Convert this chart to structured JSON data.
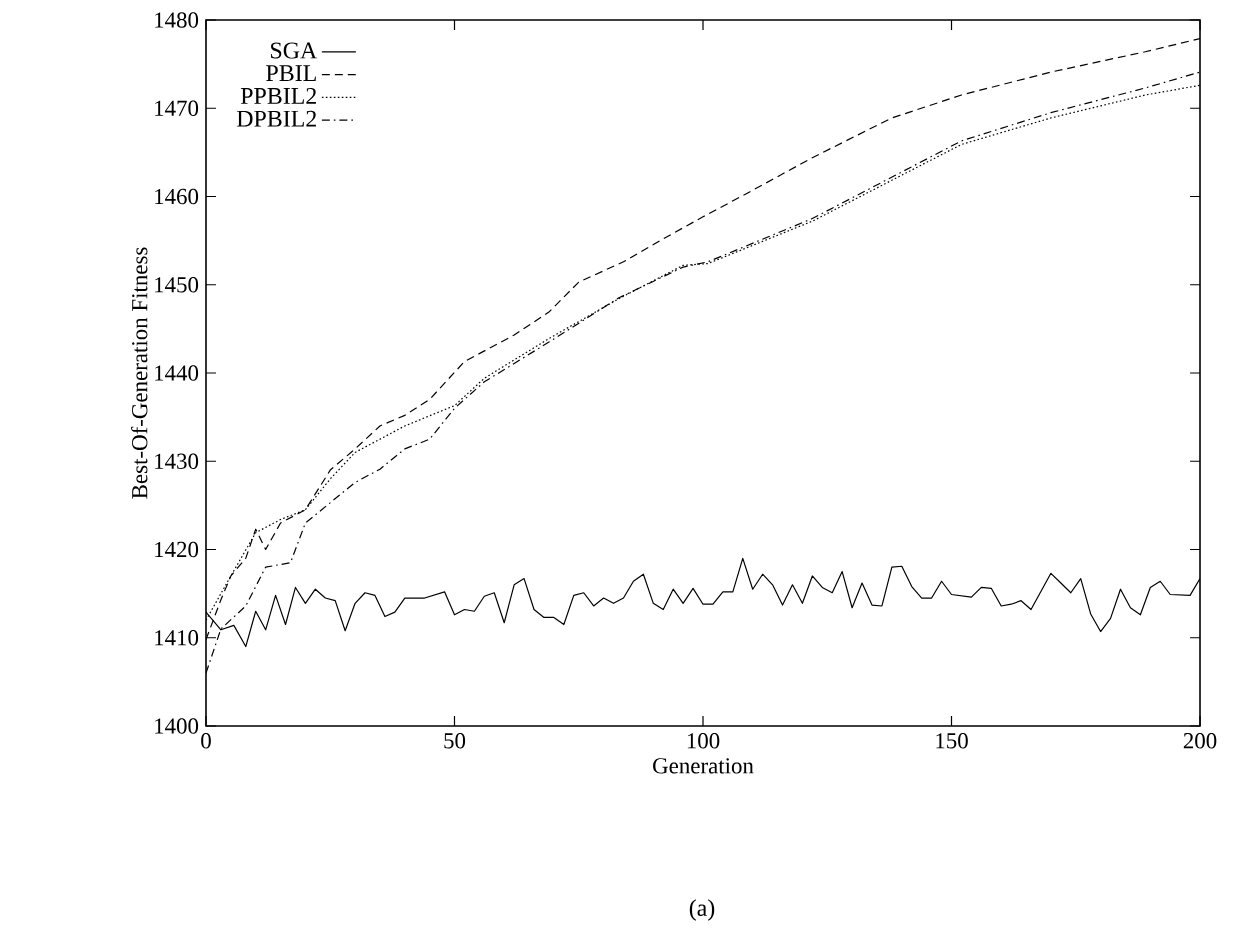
{
  "chart_data": {
    "type": "line",
    "xlabel": "Generation",
    "ylabel": "Best-Of-Generation Fitness",
    "xlim": [
      0,
      200
    ],
    "ylim": [
      1400,
      1480
    ],
    "xticks": [
      0,
      50,
      100,
      150,
      200
    ],
    "yticks": [
      1400,
      1410,
      1420,
      1430,
      1440,
      1450,
      1460,
      1470,
      1480
    ],
    "grid": false,
    "legend": "top left",
    "marker": "none",
    "annotations": [
      "(a)"
    ],
    "series": [
      {
        "name": "SGA",
        "color": "#000000",
        "line_style": "solid",
        "x": [
          0,
          3,
          5.6,
          8,
          10,
          12,
          14,
          16,
          18,
          20,
          22,
          24,
          26,
          28,
          30,
          32,
          34,
          36,
          38,
          40,
          44,
          48,
          50,
          52,
          54,
          56,
          58,
          60,
          62,
          64,
          66,
          68,
          70,
          72,
          74,
          76,
          78,
          80,
          82,
          84,
          86,
          88,
          90,
          92,
          94,
          96,
          98,
          100,
          102,
          104,
          106,
          108,
          110,
          112,
          114,
          116,
          118,
          120,
          122,
          124,
          126,
          128,
          130,
          132,
          134,
          136,
          138,
          140,
          142,
          144,
          146,
          148,
          150,
          154,
          156,
          158,
          160,
          162,
          164,
          166,
          170,
          172,
          174,
          176,
          178,
          180,
          182,
          184,
          186,
          188,
          190,
          192,
          194,
          198,
          200
        ],
        "values": [
          1412.9,
          1410.9,
          1411.4,
          1409.0,
          1413.0,
          1410.9,
          1414.8,
          1411.5,
          1415.7,
          1413.9,
          1415.5,
          1414.5,
          1414.2,
          1410.8,
          1413.9,
          1415.1,
          1414.8,
          1412.4,
          1412.9,
          1414.5,
          1414.5,
          1415.2,
          1412.6,
          1413.2,
          1413.0,
          1414.7,
          1415.1,
          1411.7,
          1416.0,
          1416.7,
          1413.2,
          1412.3,
          1412.3,
          1411.5,
          1414.8,
          1415.1,
          1413.6,
          1414.5,
          1413.9,
          1414.5,
          1416.4,
          1417.2,
          1413.9,
          1413.2,
          1415.5,
          1413.9,
          1415.6,
          1413.8,
          1413.8,
          1415.2,
          1415.2,
          1419.0,
          1415.5,
          1417.2,
          1416.0,
          1413.7,
          1416.0,
          1413.9,
          1417.0,
          1415.7,
          1415.1,
          1417.5,
          1413.4,
          1416.2,
          1413.7,
          1413.6,
          1418.0,
          1418.1,
          1415.8,
          1414.5,
          1414.5,
          1416.4,
          1414.9,
          1414.6,
          1415.7,
          1415.6,
          1413.6,
          1413.8,
          1414.2,
          1413.2,
          1417.3,
          1416.2,
          1415.1,
          1416.7,
          1412.7,
          1410.7,
          1412.2,
          1415.5,
          1413.4,
          1412.6,
          1415.7,
          1416.4,
          1414.9,
          1414.8,
          1416.7
        ]
      },
      {
        "name": "PBIL",
        "color": "#000000",
        "line_style": "dashed",
        "x": [
          0,
          3,
          5,
          8,
          10,
          12,
          15,
          20,
          25,
          30,
          35,
          40,
          45,
          52,
          62,
          69,
          75,
          84,
          92,
          100,
          109,
          122,
          138,
          152,
          170,
          189,
          200
        ],
        "values": [
          1409.8,
          1414.3,
          1417,
          1419,
          1422.3,
          1420,
          1423,
          1424.5,
          1429,
          1431.4,
          1434,
          1435.2,
          1437,
          1441.3,
          1444.3,
          1446.9,
          1450.3,
          1452.6,
          1455.2,
          1457.7,
          1460.4,
          1464.4,
          1468.9,
          1471.5,
          1474.1,
          1476.4,
          1477.9
        ]
      },
      {
        "name": "PPBIL2",
        "color": "#000000",
        "line_style": "dotted",
        "x": [
          0,
          5,
          10,
          15,
          20,
          25,
          30,
          35,
          40,
          50,
          56,
          69,
          83,
          96,
          101,
          122,
          152,
          170,
          189,
          200
        ],
        "values": [
          1412,
          1417,
          1421.9,
          1423.4,
          1424.5,
          1428,
          1431,
          1432.5,
          1434,
          1436.3,
          1439.4,
          1443.9,
          1448.4,
          1452.2,
          1452.4,
          1457.2,
          1465.9,
          1468.9,
          1471.5,
          1472.6
        ]
      },
      {
        "name": "DPBIL2",
        "color": "#000000",
        "line_style": "dashdot",
        "x": [
          0,
          3,
          8,
          12,
          17,
          20,
          25,
          30,
          35,
          40,
          45,
          50,
          56,
          69,
          83,
          96,
          101,
          122,
          152,
          170,
          189,
          200
        ],
        "values": [
          1406,
          1411,
          1413.6,
          1418,
          1418.5,
          1423,
          1425.3,
          1427.6,
          1429.1,
          1431.4,
          1432.5,
          1436,
          1439,
          1443.5,
          1448.5,
          1452,
          1452.6,
          1457.5,
          1466.3,
          1469.5,
          1472.3,
          1474.1
        ]
      }
    ]
  }
}
